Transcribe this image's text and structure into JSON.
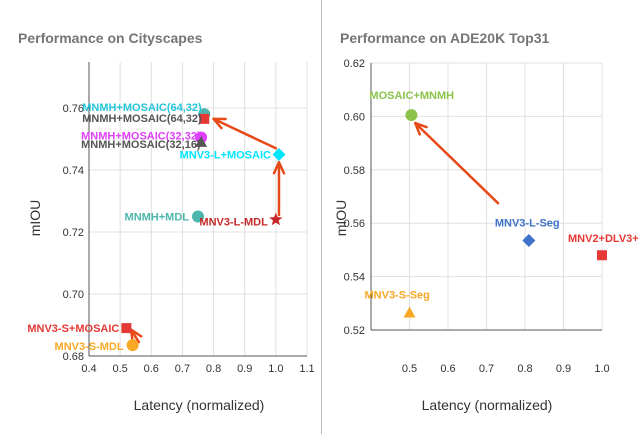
{
  "left_panel": {
    "title": "Performance on Cityscapes"
  },
  "right_panel": {
    "title": "Performance on ADE20K Top31"
  },
  "chart_data": [
    {
      "type": "scatter",
      "title": "Performance on Cityscapes",
      "xlabel": "Latency (normalized)",
      "ylabel": "mIOU",
      "xlim": [
        0.4,
        1.1
      ],
      "ylim": [
        0.68,
        0.76
      ],
      "x_ticks": [
        "0.4",
        "0.5",
        "0.6",
        "0.7",
        "0.8",
        "0.9",
        "1.0",
        "1.1"
      ],
      "y_ticks": [
        "0.68",
        "0.70",
        "0.72",
        "0.74",
        "0.76"
      ],
      "grid": true,
      "points": [
        {
          "name": "MNMH+MOSAIC(64,32)",
          "x": 0.77,
          "y": 0.758,
          "shape": "circle",
          "color": "#4db6ac",
          "label_color": "#26c6da"
        },
        {
          "name": "MNMH+MOSAIC(64,32)",
          "x": 0.77,
          "y": 0.7565,
          "shape": "square",
          "color": "#e53935",
          "label_color": "#555555"
        },
        {
          "name": "MNMH+MOSAIC(32,32)",
          "x": 0.76,
          "y": 0.7505,
          "shape": "circle",
          "color": "#e040fb",
          "label_color": "#e040fb"
        },
        {
          "name": "MNMH+MOSAIC(32,16)",
          "x": 0.76,
          "y": 0.749,
          "shape": "triangle",
          "color": "#555555",
          "label_color": "#555555"
        },
        {
          "name": "MNV3-L+MOSAIC",
          "x": 1.01,
          "y": 0.745,
          "shape": "diamond",
          "color": "#00e5ff",
          "label_color": "#00e5ff"
        },
        {
          "name": "MNMH+MDL",
          "x": 0.75,
          "y": 0.725,
          "shape": "circle",
          "color": "#4db6ac",
          "label_color": "#4db6ac"
        },
        {
          "name": "MNV3-L-MDL",
          "x": 1.0,
          "y": 0.724,
          "shape": "star",
          "color": "#c62828",
          "label_color": "#c62828"
        },
        {
          "name": "MNV3-S+MOSAIC",
          "x": 0.52,
          "y": 0.689,
          "shape": "square",
          "color": "#e53935",
          "label_color": "#e53935"
        },
        {
          "name": "MNV3-S-MDL",
          "x": 0.54,
          "y": 0.6835,
          "shape": "circle",
          "color": "#f9a825",
          "label_color": "#f9a825"
        }
      ],
      "arrows": [
        {
          "from": [
            1.0,
            0.747
          ],
          "to": [
            0.8,
            0.7565
          ]
        },
        {
          "from": [
            1.01,
            0.7255
          ],
          "to": [
            1.01,
            0.7425
          ]
        },
        {
          "from": [
            0.56,
            0.6845
          ],
          "to": [
            0.535,
            0.6885
          ]
        }
      ]
    },
    {
      "type": "scatter",
      "title": "Performance on ADE20K Top31",
      "xlabel": "Latency (normalized)",
      "ylabel": "mIOU",
      "xlim": [
        0.4,
        1.0
      ],
      "ylim": [
        0.52,
        0.62
      ],
      "x_ticks": [
        "0.5",
        "0.6",
        "0.7",
        "0.8",
        "0.9",
        "1.0"
      ],
      "y_ticks": [
        "0.52",
        "0.54",
        "0.56",
        "0.58",
        "0.60",
        "0.62"
      ],
      "grid": true,
      "points": [
        {
          "name": "MOSAIC+MNMH",
          "x": 0.505,
          "y": 0.6005,
          "shape": "circle",
          "color": "#8bc34a",
          "label_color": "#8bc34a"
        },
        {
          "name": "MNV3-L-Seg",
          "x": 0.81,
          "y": 0.5535,
          "shape": "diamond",
          "color": "#3f72c8",
          "label_color": "#3f72c8"
        },
        {
          "name": "MNV2+DLV3+",
          "x": 1.0,
          "y": 0.548,
          "shape": "square",
          "color": "#e53935",
          "label_color": "#e53935"
        },
        {
          "name": "MNV3-S-Seg",
          "x": 0.5,
          "y": 0.5265,
          "shape": "triangle",
          "color": "#f9a825",
          "label_color": "#f9a825"
        }
      ],
      "arrows": [
        {
          "from": [
            0.73,
            0.5675
          ],
          "to": [
            0.515,
            0.5975
          ]
        }
      ]
    }
  ]
}
